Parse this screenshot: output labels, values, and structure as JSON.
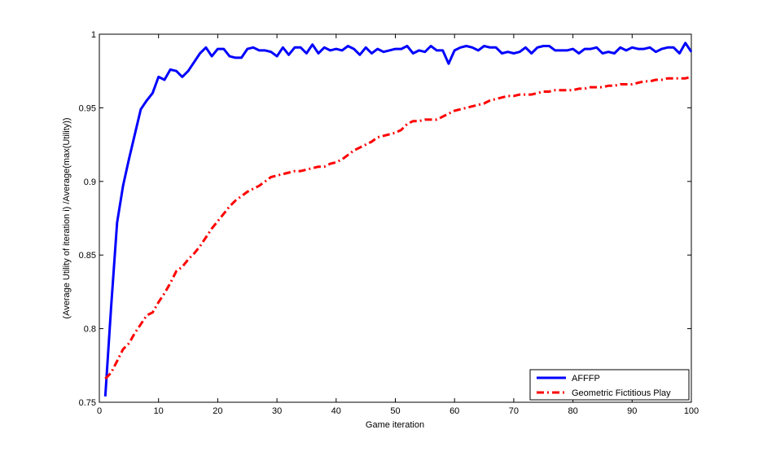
{
  "chart_data": {
    "type": "line",
    "title": "",
    "xlabel": "Game iteration",
    "ylabel": "(Average Utility of iteration i) /Average(max(Utility))",
    "xlim": [
      0,
      100
    ],
    "ylim": [
      0.75,
      1
    ],
    "xticks": [
      0,
      10,
      20,
      30,
      40,
      50,
      60,
      70,
      80,
      90,
      100
    ],
    "xtick_labels": [
      "0",
      "10",
      "20",
      "30",
      "40",
      "50",
      "60",
      "70",
      "80",
      "90",
      "100"
    ],
    "yticks": [
      0.75,
      0.8,
      0.85,
      0.9,
      0.95,
      1
    ],
    "ytick_labels": [
      "0.75",
      "0.8",
      "0.85",
      "0.9",
      "0.95",
      "1"
    ],
    "grid": false,
    "legend_position": "bottom-right",
    "series": [
      {
        "name": "AFFFP",
        "color": "#0000ff",
        "style": "solid",
        "x": [
          1,
          2,
          3,
          4,
          5,
          6,
          7,
          8,
          9,
          10,
          11,
          12,
          13,
          14,
          15,
          16,
          17,
          18,
          19,
          20,
          21,
          22,
          23,
          24,
          25,
          26,
          27,
          28,
          29,
          30,
          31,
          32,
          33,
          34,
          35,
          36,
          37,
          38,
          39,
          40,
          41,
          42,
          43,
          44,
          45,
          46,
          47,
          48,
          49,
          50,
          51,
          52,
          53,
          54,
          55,
          56,
          57,
          58,
          59,
          60,
          61,
          62,
          63,
          64,
          65,
          66,
          67,
          68,
          69,
          70,
          71,
          72,
          73,
          74,
          75,
          76,
          77,
          78,
          79,
          80,
          81,
          82,
          83,
          84,
          85,
          86,
          87,
          88,
          89,
          90,
          91,
          92,
          93,
          94,
          95,
          96,
          97,
          98,
          99,
          100
        ],
        "y": [
          0.754,
          0.815,
          0.872,
          0.897,
          0.915,
          0.932,
          0.949,
          0.955,
          0.96,
          0.971,
          0.969,
          0.976,
          0.975,
          0.971,
          0.975,
          0.981,
          0.987,
          0.991,
          0.985,
          0.99,
          0.99,
          0.985,
          0.984,
          0.984,
          0.99,
          0.991,
          0.989,
          0.989,
          0.988,
          0.985,
          0.991,
          0.986,
          0.991,
          0.991,
          0.987,
          0.993,
          0.987,
          0.991,
          0.989,
          0.99,
          0.989,
          0.992,
          0.99,
          0.986,
          0.991,
          0.987,
          0.99,
          0.988,
          0.989,
          0.99,
          0.99,
          0.992,
          0.987,
          0.989,
          0.988,
          0.992,
          0.989,
          0.989,
          0.98,
          0.989,
          0.991,
          0.992,
          0.991,
          0.989,
          0.992,
          0.991,
          0.991,
          0.987,
          0.988,
          0.987,
          0.988,
          0.991,
          0.987,
          0.991,
          0.992,
          0.992,
          0.989,
          0.989,
          0.989,
          0.99,
          0.987,
          0.99,
          0.99,
          0.991,
          0.987,
          0.988,
          0.987,
          0.991,
          0.989,
          0.991,
          0.99,
          0.99,
          0.991,
          0.988,
          0.99,
          0.991,
          0.991,
          0.987,
          0.994,
          0.988
        ]
      },
      {
        "name": "Geometric Fictitious Play",
        "color": "#ff0000",
        "style": "dash-dot",
        "x": [
          1,
          2,
          3,
          4,
          5,
          6,
          7,
          8,
          9,
          10,
          11,
          12,
          13,
          14,
          15,
          16,
          17,
          18,
          19,
          20,
          21,
          22,
          23,
          24,
          25,
          26,
          27,
          28,
          29,
          30,
          31,
          32,
          33,
          34,
          35,
          36,
          37,
          38,
          39,
          40,
          41,
          42,
          43,
          44,
          45,
          46,
          47,
          48,
          49,
          50,
          51,
          52,
          53,
          54,
          55,
          56,
          57,
          58,
          59,
          60,
          61,
          62,
          63,
          64,
          65,
          66,
          67,
          68,
          69,
          70,
          71,
          72,
          73,
          74,
          75,
          76,
          77,
          78,
          79,
          80,
          81,
          82,
          83,
          84,
          85,
          86,
          87,
          88,
          89,
          90,
          91,
          92,
          93,
          94,
          95,
          96,
          97,
          98,
          99,
          100
        ],
        "y": [
          0.766,
          0.77,
          0.778,
          0.786,
          0.79,
          0.797,
          0.803,
          0.809,
          0.811,
          0.818,
          0.824,
          0.831,
          0.839,
          0.842,
          0.847,
          0.851,
          0.856,
          0.862,
          0.868,
          0.873,
          0.878,
          0.883,
          0.887,
          0.89,
          0.893,
          0.895,
          0.897,
          0.9,
          0.903,
          0.904,
          0.905,
          0.906,
          0.907,
          0.907,
          0.908,
          0.909,
          0.91,
          0.91,
          0.912,
          0.913,
          0.915,
          0.918,
          0.921,
          0.923,
          0.925,
          0.927,
          0.93,
          0.931,
          0.932,
          0.933,
          0.935,
          0.939,
          0.941,
          0.941,
          0.942,
          0.942,
          0.942,
          0.944,
          0.946,
          0.948,
          0.949,
          0.95,
          0.951,
          0.952,
          0.953,
          0.955,
          0.956,
          0.957,
          0.958,
          0.958,
          0.959,
          0.959,
          0.959,
          0.96,
          0.961,
          0.961,
          0.962,
          0.962,
          0.962,
          0.962,
          0.963,
          0.963,
          0.964,
          0.964,
          0.964,
          0.965,
          0.965,
          0.966,
          0.966,
          0.966,
          0.967,
          0.968,
          0.968,
          0.969,
          0.969,
          0.97,
          0.97,
          0.97,
          0.97,
          0.971
        ]
      }
    ]
  }
}
